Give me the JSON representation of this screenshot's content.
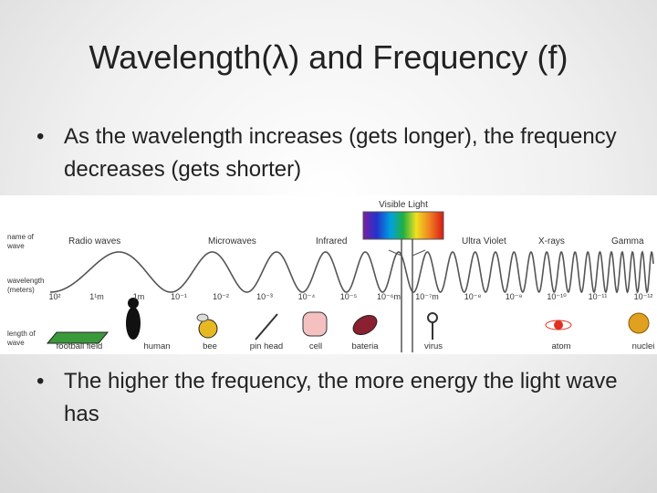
{
  "title": "Wavelength(λ) and Frequency (f)",
  "bullets": [
    "As the wavelength increases (gets longer), the frequency decreases (gets shorter)",
    "The higher the frequency, the more energy the light wave has"
  ],
  "spectrum": {
    "visible_label": "Visible Light",
    "row_labels": [
      [
        "name of",
        "wave"
      ],
      [
        "wavelength",
        "(meters)"
      ],
      [
        "length of",
        "wave"
      ]
    ],
    "waves": [
      "Radio waves",
      "Microwaves",
      "Infrared",
      "Ultra Violet",
      "X-rays",
      "Gamma"
    ],
    "wavelengths": [
      "10²",
      "1¹m",
      "1m",
      "10⁻¹",
      "10⁻²",
      "10⁻³",
      "10⁻⁴",
      "10⁻⁵",
      "10⁻⁶m",
      "10⁻⁷m",
      "10⁻⁸",
      "10⁻⁹",
      "10⁻¹⁰",
      "10⁻¹¹",
      "10⁻¹²"
    ],
    "objects": [
      "football field",
      "human",
      "bee",
      "pin head",
      "cell",
      "bateria",
      "virus",
      "atom",
      "nuclei"
    ]
  }
}
